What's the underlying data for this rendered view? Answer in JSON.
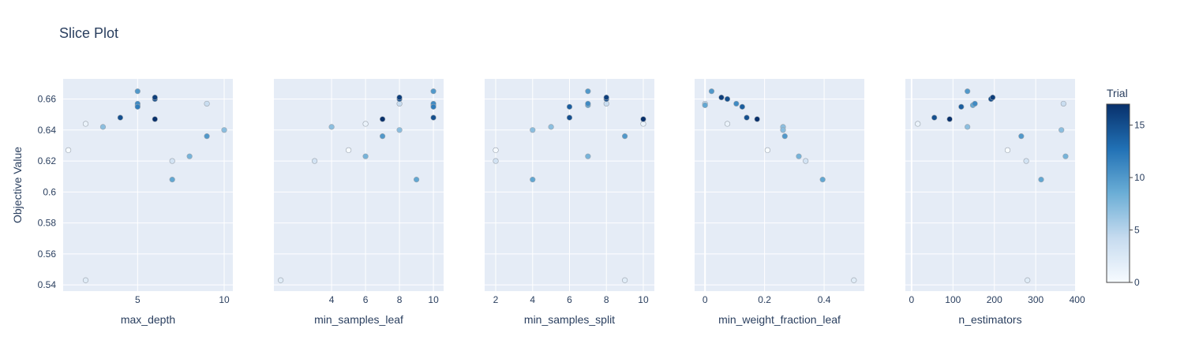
{
  "title": "Slice Plot",
  "chart_data": {
    "type": "scatter",
    "title": "Slice Plot",
    "ylabel": "Objective Value",
    "ylim": [
      0.536,
      0.673
    ],
    "yticks": [
      0.54,
      0.56,
      0.58,
      0.6,
      0.62,
      0.64,
      0.66
    ],
    "ytick_labels": [
      "0.54",
      "0.56",
      "0.58",
      "0.6",
      "0.62",
      "0.64",
      "0.66"
    ],
    "colorbar": {
      "title": "Trial",
      "range": [
        0,
        17
      ],
      "ticks": [
        0,
        5,
        10,
        15
      ],
      "tick_labels": [
        "0",
        "5",
        "10",
        "15"
      ],
      "colors": [
        "#f7fbff",
        "#c6dbef",
        "#6baed6",
        "#2171b5",
        "#08306b"
      ]
    },
    "panels": [
      {
        "xlabel": "max_depth",
        "xlim": [
          0.7,
          10.5
        ],
        "xticks": [
          5,
          10
        ],
        "xtick_labels": [
          "5",
          "10"
        ],
        "points": [
          {
            "x": 1,
            "y": 0.627,
            "trial": 0
          },
          {
            "x": 2,
            "y": 0.644,
            "trial": 1
          },
          {
            "x": 2,
            "y": 0.543,
            "trial": 2
          },
          {
            "x": 3,
            "y": 0.642,
            "trial": 7
          },
          {
            "x": 4,
            "y": 0.648,
            "trial": 15
          },
          {
            "x": 5,
            "y": 0.665,
            "trial": 10
          },
          {
            "x": 5,
            "y": 0.657,
            "trial": 11
          },
          {
            "x": 5,
            "y": 0.656,
            "trial": 9
          },
          {
            "x": 5,
            "y": 0.655,
            "trial": 12
          },
          {
            "x": 6,
            "y": 0.661,
            "trial": 16
          },
          {
            "x": 6,
            "y": 0.66,
            "trial": 15
          },
          {
            "x": 6,
            "y": 0.647,
            "trial": 17
          },
          {
            "x": 7,
            "y": 0.62,
            "trial": 3
          },
          {
            "x": 7,
            "y": 0.608,
            "trial": 9
          },
          {
            "x": 8,
            "y": 0.623,
            "trial": 8
          },
          {
            "x": 9,
            "y": 0.657,
            "trial": 4
          },
          {
            "x": 9,
            "y": 0.636,
            "trial": 10
          },
          {
            "x": 10,
            "y": 0.64,
            "trial": 7
          }
        ]
      },
      {
        "xlabel": "min_samples_leaf",
        "xlim": [
          0.6,
          10.6
        ],
        "xticks": [
          4,
          6,
          8,
          10
        ],
        "xtick_labels": [
          "4",
          "6",
          "8",
          "10"
        ],
        "points": [
          {
            "x": 1,
            "y": 0.543,
            "trial": 2
          },
          {
            "x": 3,
            "y": 0.62,
            "trial": 3
          },
          {
            "x": 4,
            "y": 0.642,
            "trial": 7
          },
          {
            "x": 5,
            "y": 0.627,
            "trial": 0
          },
          {
            "x": 6,
            "y": 0.644,
            "trial": 1
          },
          {
            "x": 6,
            "y": 0.623,
            "trial": 8
          },
          {
            "x": 7,
            "y": 0.647,
            "trial": 17
          },
          {
            "x": 7,
            "y": 0.636,
            "trial": 10
          },
          {
            "x": 8,
            "y": 0.661,
            "trial": 16
          },
          {
            "x": 8,
            "y": 0.66,
            "trial": 15
          },
          {
            "x": 8,
            "y": 0.657,
            "trial": 4
          },
          {
            "x": 8,
            "y": 0.64,
            "trial": 7
          },
          {
            "x": 9,
            "y": 0.608,
            "trial": 9
          },
          {
            "x": 10,
            "y": 0.665,
            "trial": 10
          },
          {
            "x": 10,
            "y": 0.657,
            "trial": 11
          },
          {
            "x": 10,
            "y": 0.656,
            "trial": 9
          },
          {
            "x": 10,
            "y": 0.655,
            "trial": 12
          },
          {
            "x": 10,
            "y": 0.648,
            "trial": 15
          }
        ]
      },
      {
        "xlabel": "min_samples_split",
        "xlim": [
          1.4,
          10.6
        ],
        "xticks": [
          2,
          4,
          6,
          8,
          10
        ],
        "xtick_labels": [
          "2",
          "4",
          "6",
          "8",
          "10"
        ],
        "points": [
          {
            "x": 2,
            "y": 0.627,
            "trial": 0
          },
          {
            "x": 2,
            "y": 0.62,
            "trial": 3
          },
          {
            "x": 4,
            "y": 0.64,
            "trial": 7
          },
          {
            "x": 4,
            "y": 0.608,
            "trial": 9
          },
          {
            "x": 5,
            "y": 0.642,
            "trial": 7
          },
          {
            "x": 6,
            "y": 0.655,
            "trial": 14
          },
          {
            "x": 6,
            "y": 0.648,
            "trial": 15
          },
          {
            "x": 7,
            "y": 0.665,
            "trial": 10
          },
          {
            "x": 7,
            "y": 0.657,
            "trial": 11
          },
          {
            "x": 7,
            "y": 0.656,
            "trial": 9
          },
          {
            "x": 7,
            "y": 0.623,
            "trial": 8
          },
          {
            "x": 8,
            "y": 0.661,
            "trial": 16
          },
          {
            "x": 8,
            "y": 0.66,
            "trial": 15
          },
          {
            "x": 8,
            "y": 0.657,
            "trial": 4
          },
          {
            "x": 9,
            "y": 0.636,
            "trial": 10
          },
          {
            "x": 9,
            "y": 0.543,
            "trial": 2
          },
          {
            "x": 10,
            "y": 0.647,
            "trial": 17
          },
          {
            "x": 10,
            "y": 0.644,
            "trial": 1
          }
        ]
      },
      {
        "xlabel": "min_weight_fraction_leaf",
        "xlim": [
          -0.035,
          0.535
        ],
        "xticks": [
          0,
          0.2,
          0.4
        ],
        "xtick_labels": [
          "0",
          "0.2",
          "0.4"
        ],
        "points": [
          {
            "x": 0.0,
            "y": 0.657,
            "trial": 4
          },
          {
            "x": 0.0,
            "y": 0.656,
            "trial": 9
          },
          {
            "x": 0.022,
            "y": 0.665,
            "trial": 10
          },
          {
            "x": 0.055,
            "y": 0.661,
            "trial": 16
          },
          {
            "x": 0.075,
            "y": 0.66,
            "trial": 15
          },
          {
            "x": 0.075,
            "y": 0.644,
            "trial": 1
          },
          {
            "x": 0.105,
            "y": 0.657,
            "trial": 11
          },
          {
            "x": 0.125,
            "y": 0.655,
            "trial": 14
          },
          {
            "x": 0.14,
            "y": 0.648,
            "trial": 15
          },
          {
            "x": 0.175,
            "y": 0.647,
            "trial": 17
          },
          {
            "x": 0.21,
            "y": 0.627,
            "trial": 0
          },
          {
            "x": 0.262,
            "y": 0.642,
            "trial": 7
          },
          {
            "x": 0.262,
            "y": 0.64,
            "trial": 7
          },
          {
            "x": 0.268,
            "y": 0.636,
            "trial": 10
          },
          {
            "x": 0.315,
            "y": 0.623,
            "trial": 8
          },
          {
            "x": 0.338,
            "y": 0.62,
            "trial": 3
          },
          {
            "x": 0.395,
            "y": 0.608,
            "trial": 9
          },
          {
            "x": 0.5,
            "y": 0.543,
            "trial": 2
          }
        ]
      },
      {
        "xlabel": "n_estimators",
        "xlim": [
          -15,
          395
        ],
        "xticks": [
          0,
          100,
          200,
          300,
          400
        ],
        "xtick_labels": [
          "0",
          "100",
          "200",
          "300",
          "400"
        ],
        "points": [
          {
            "x": 15,
            "y": 0.644,
            "trial": 1
          },
          {
            "x": 55,
            "y": 0.648,
            "trial": 15
          },
          {
            "x": 92,
            "y": 0.647,
            "trial": 17
          },
          {
            "x": 120,
            "y": 0.655,
            "trial": 14
          },
          {
            "x": 135,
            "y": 0.665,
            "trial": 10
          },
          {
            "x": 135,
            "y": 0.642,
            "trial": 7
          },
          {
            "x": 148,
            "y": 0.656,
            "trial": 9
          },
          {
            "x": 153,
            "y": 0.657,
            "trial": 11
          },
          {
            "x": 192,
            "y": 0.66,
            "trial": 15
          },
          {
            "x": 196,
            "y": 0.661,
            "trial": 16
          },
          {
            "x": 232,
            "y": 0.627,
            "trial": 0
          },
          {
            "x": 265,
            "y": 0.636,
            "trial": 10
          },
          {
            "x": 277,
            "y": 0.62,
            "trial": 3
          },
          {
            "x": 280,
            "y": 0.543,
            "trial": 2
          },
          {
            "x": 313,
            "y": 0.608,
            "trial": 9
          },
          {
            "x": 362,
            "y": 0.64,
            "trial": 7
          },
          {
            "x": 367,
            "y": 0.657,
            "trial": 4
          },
          {
            "x": 372,
            "y": 0.623,
            "trial": 8
          }
        ]
      }
    ]
  }
}
